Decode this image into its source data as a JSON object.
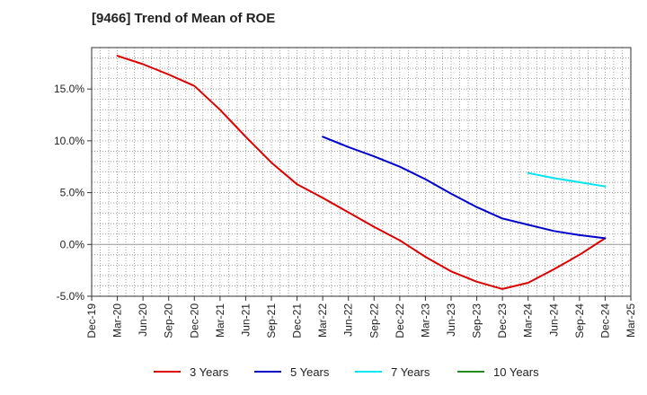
{
  "chart_data": {
    "type": "line",
    "title": "[9466]  Trend of Mean of ROE",
    "xlabel": "",
    "ylabel": "",
    "x": [
      "Dec-19",
      "Mar-20",
      "Jun-20",
      "Sep-20",
      "Dec-20",
      "Mar-21",
      "Jun-21",
      "Sep-21",
      "Dec-21",
      "Mar-22",
      "Jun-22",
      "Sep-22",
      "Dec-22",
      "Mar-23",
      "Jun-23",
      "Sep-23",
      "Dec-23",
      "Mar-24",
      "Jun-24",
      "Sep-24",
      "Dec-24",
      "Mar-25"
    ],
    "ylim": [
      -5,
      19
    ],
    "yticks": [
      -5,
      0,
      5,
      10,
      15
    ],
    "ytick_labels": [
      "-5.0%",
      "0.0%",
      "5.0%",
      "10.0%",
      "15.0%"
    ],
    "grid": true,
    "legend_position": "bottom",
    "series": [
      {
        "name": "3 Years",
        "color": "#dd0000",
        "values": [
          null,
          18.2,
          17.4,
          16.4,
          15.3,
          13.0,
          10.4,
          7.9,
          5.8,
          4.5,
          3.1,
          1.7,
          0.4,
          -1.2,
          -2.6,
          -3.6,
          -4.3,
          -3.7,
          -2.4,
          -1.0,
          0.6,
          null
        ]
      },
      {
        "name": "5 Years",
        "color": "#0000cc",
        "values": [
          null,
          null,
          null,
          null,
          null,
          null,
          null,
          null,
          null,
          10.4,
          9.4,
          8.5,
          7.5,
          6.3,
          4.9,
          3.6,
          2.5,
          1.9,
          1.3,
          0.9,
          0.6,
          null
        ]
      },
      {
        "name": "7 Years",
        "color": "#00e5ee",
        "values": [
          null,
          null,
          null,
          null,
          null,
          null,
          null,
          null,
          null,
          null,
          null,
          null,
          null,
          null,
          null,
          null,
          null,
          6.9,
          6.4,
          6.0,
          5.6,
          null
        ]
      },
      {
        "name": "10 Years",
        "color": "#228b22",
        "values": [
          null,
          null,
          null,
          null,
          null,
          null,
          null,
          null,
          null,
          null,
          null,
          null,
          null,
          null,
          null,
          null,
          null,
          null,
          null,
          null,
          null,
          null
        ]
      }
    ]
  }
}
